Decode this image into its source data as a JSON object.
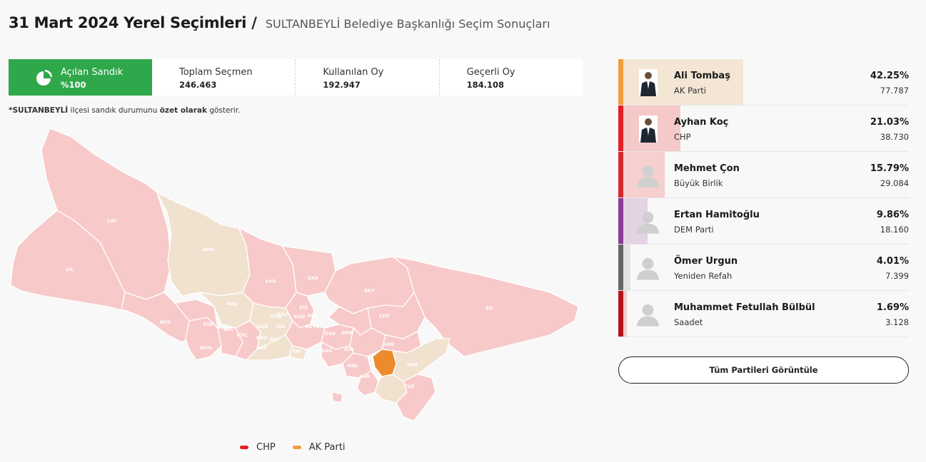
{
  "header": {
    "title": "31 Mart 2024 Yerel Seçimleri",
    "separator": "/",
    "subtitle": "SULTANBEYLİ Belediye Başkanlığı Seçim Sonuçları"
  },
  "stats": {
    "opened": {
      "label": "Açılan Sandık",
      "value": "%100",
      "icon": "pie-chart-icon"
    },
    "total": {
      "label": "Toplam Seçmen",
      "value": "246.463"
    },
    "used": {
      "label": "Kullanılan Oy",
      "value": "192.947"
    },
    "valid": {
      "label": "Geçerli Oy",
      "value": "184.108"
    }
  },
  "note": {
    "district": "SULTANBEYLİ",
    "text1": " ilçesi sandık durumunu ",
    "bold": "özet olarak",
    "text2": " gösterir."
  },
  "map": {
    "colors": {
      "chp": "#f8c9c9",
      "ak": "#f0e2cf",
      "selected": "#ec8a2c",
      "border": "#ffffff"
    },
    "district_labels": [
      "ÇAT",
      "SİL",
      "ARN",
      "EYÜ",
      "SAR",
      "BEY",
      "ŞİL",
      "ÇEK",
      "BAŞ",
      "BÜY",
      "ESE",
      "AVC",
      "KÜÇ",
      "BAĞ",
      "BAY",
      "GÜN",
      "ZEY",
      "FAT",
      "GAZ",
      "SUL",
      "ÜSK",
      "ÜMR",
      "ATA",
      "KAD",
      "MAL",
      "KAR",
      "SAN",
      "PEN",
      "TUZ",
      "BEYL",
      "ŞİŞ",
      "KAĞ",
      "BES",
      "BAH",
      "BEYO"
    ]
  },
  "legend": [
    {
      "label": "CHP",
      "color": "#e31e24"
    },
    {
      "label": "AK Parti",
      "color": "#f39c3d"
    }
  ],
  "candidates": [
    {
      "name": "Ali Tombaş",
      "party": "AK Parti",
      "pct": "42.25%",
      "pct_value": 42.25,
      "votes": "77.787",
      "color": "#f39c3d",
      "bg": "#f4e6d4",
      "photo": "photo"
    },
    {
      "name": "Ayhan Koç",
      "party": "CHP",
      "pct": "21.03%",
      "pct_value": 21.03,
      "votes": "38.730",
      "color": "#e31e24",
      "bg": "#f6c9c9",
      "photo": "photo"
    },
    {
      "name": "Mehmet Çon",
      "party": "Büyük Birlik",
      "pct": "15.79%",
      "pct_value": 15.79,
      "votes": "29.084",
      "color": "#d7282f",
      "bg": "#f6cfcf",
      "photo": "placeholder"
    },
    {
      "name": "Ertan Hamitoğlu",
      "party": "DEM Parti",
      "pct": "9.86%",
      "pct_value": 9.86,
      "votes": "18.160",
      "color": "#8b3d97",
      "bg": "#e4d3e3",
      "photo": "placeholder"
    },
    {
      "name": "Ömer Urgun",
      "party": "Yeniden Refah",
      "pct": "4.01%",
      "pct_value": 4.01,
      "votes": "7.399",
      "color": "#666666",
      "bg": "#e2e2e2",
      "photo": "placeholder"
    },
    {
      "name": "Muhammet Fetullah Bülbül",
      "party": "Saadet",
      "pct": "1.69%",
      "pct_value": 1.69,
      "votes": "3.128",
      "color": "#b3141a",
      "bg": "#f2cccc",
      "photo": "placeholder"
    }
  ],
  "buttons": {
    "all_parties": "Tüm Partileri Görüntüle"
  }
}
